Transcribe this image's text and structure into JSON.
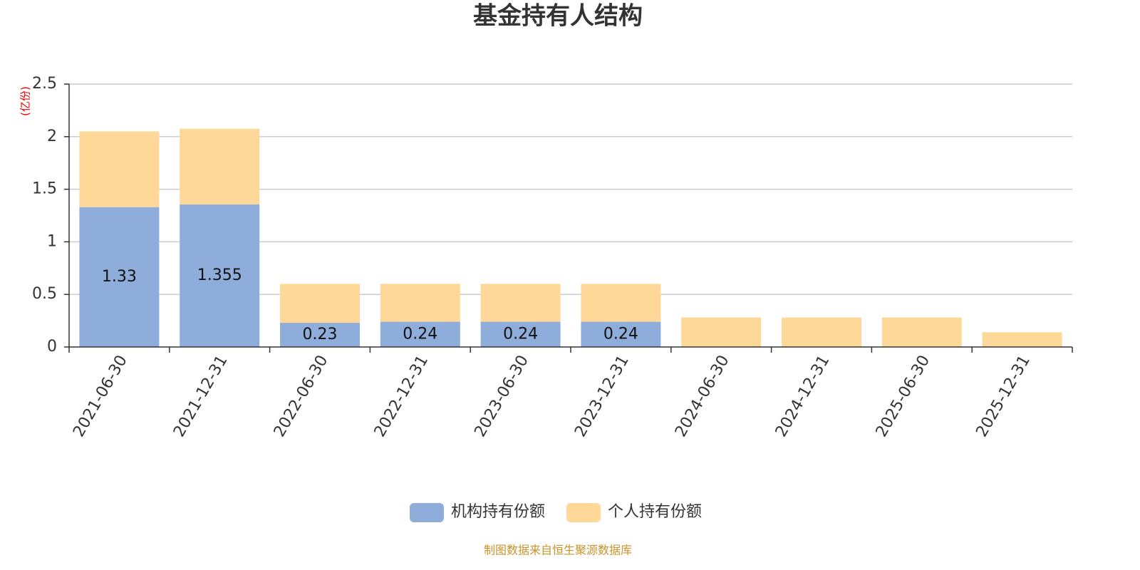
{
  "chart_data": {
    "type": "stacked_bar",
    "title": "基金持有人结构",
    "y_unit": "(亿份)",
    "categories": [
      "2021-06-30",
      "2021-12-31",
      "2022-06-30",
      "2022-12-31",
      "2023-06-30",
      "2023-12-31",
      "2024-06-30",
      "2024-12-31",
      "2025-06-30",
      "2025-12-31"
    ],
    "series": [
      {
        "name": "机构持有份额",
        "color": "#8eaddb",
        "values": [
          1.33,
          1.355,
          0.23,
          0.24,
          0.24,
          0.24,
          0,
          0,
          0,
          0
        ],
        "show_labels": true
      },
      {
        "name": "个人持有份额",
        "color": "#fdd898",
        "values": [
          0.72,
          0.72,
          0.37,
          0.36,
          0.36,
          0.36,
          0.28,
          0.28,
          0.28,
          0.14
        ],
        "show_labels": false
      }
    ],
    "ylim": [
      0,
      2.5
    ],
    "yticks": [
      0,
      0.5,
      1,
      1.5,
      2,
      2.5
    ],
    "grid": true,
    "source": "制图数据来自恒生聚源数据库"
  }
}
